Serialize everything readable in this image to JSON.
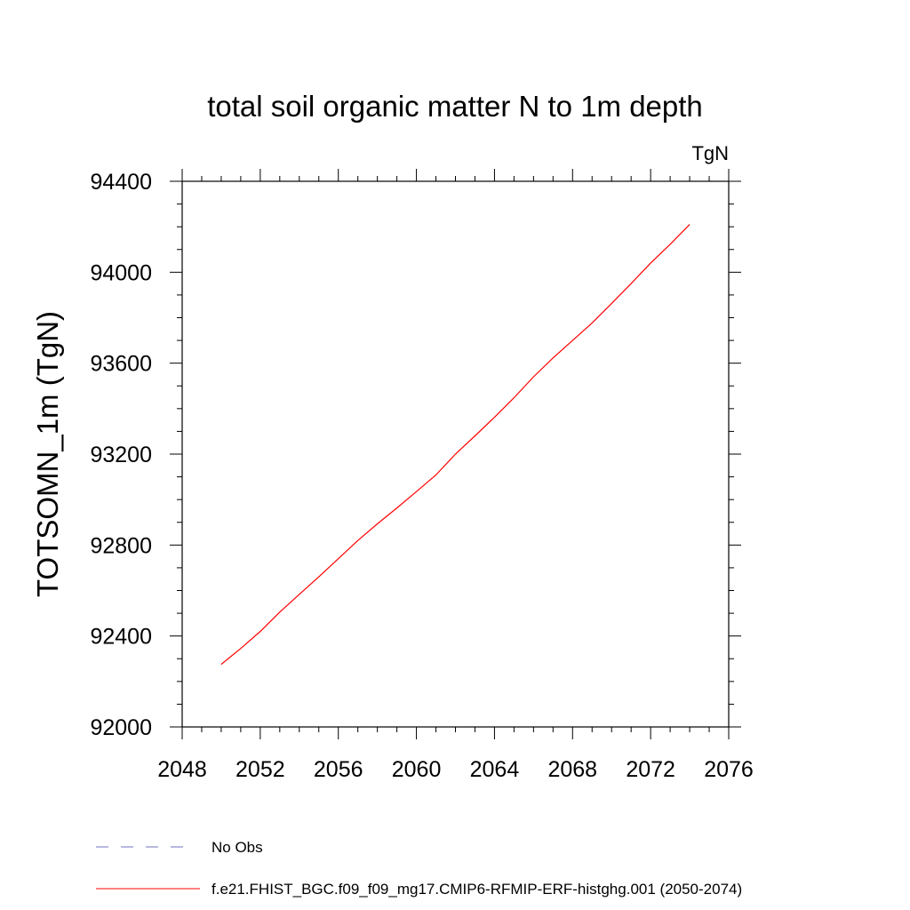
{
  "chart_data": {
    "type": "line",
    "title": "total soil organic matter N to 1m depth",
    "units_label": "TgN",
    "xlabel": "",
    "ylabel": "TOTSOMN_1m  (TgN)",
    "xlim": [
      2048,
      2076
    ],
    "ylim": [
      92000,
      94400
    ],
    "x_ticks": [
      2048,
      2052,
      2056,
      2060,
      2064,
      2068,
      2072,
      2076
    ],
    "x_tick_labels": [
      "2048",
      "2052",
      "2056",
      "2060",
      "2064",
      "2068",
      "2072",
      "2076"
    ],
    "y_ticks": [
      92000,
      92400,
      92800,
      93200,
      93600,
      94000,
      94400
    ],
    "y_tick_labels": [
      "92000",
      "92400",
      "92800",
      "93200",
      "93600",
      "94000",
      "94400"
    ],
    "grid": false,
    "series": [
      {
        "name": "f.e21.FHIST_BGC.f09_f09_mg17.CMIP6-RFMIP-ERF-histghg.001 (2050-2074)",
        "color": "#ff0000",
        "style": "solid",
        "x": [
          2050,
          2051,
          2052,
          2053,
          2054,
          2055,
          2056,
          2057,
          2058,
          2059,
          2060,
          2061,
          2062,
          2063,
          2064,
          2065,
          2066,
          2067,
          2068,
          2069,
          2070,
          2071,
          2072,
          2073,
          2074
        ],
        "y": [
          92275,
          92345,
          92420,
          92505,
          92583,
          92660,
          92740,
          92820,
          92893,
          92963,
          93035,
          93108,
          93200,
          93280,
          93362,
          93448,
          93540,
          93623,
          93700,
          93777,
          93862,
          93950,
          94040,
          94123,
          94210
        ]
      }
    ],
    "legend": [
      {
        "label": "No Obs",
        "color": "#7070c0",
        "style": "dashed"
      },
      {
        "label": "f.e21.FHIST_BGC.f09_f09_mg17.CMIP6-RFMIP-ERF-histghg.001 (2050-2074)",
        "color": "#ff0000",
        "style": "solid"
      }
    ],
    "legend_position": "bottom"
  }
}
